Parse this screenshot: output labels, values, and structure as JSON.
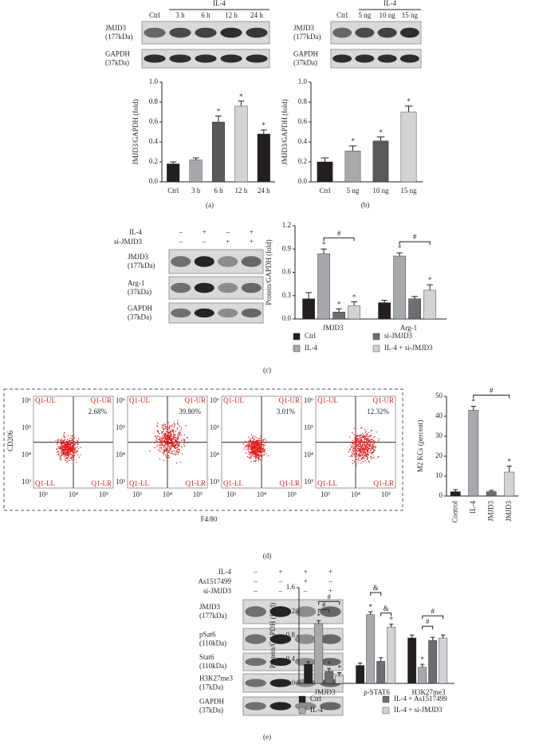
{
  "panel_labels": [
    "(a)",
    "(b)",
    "(c)",
    "(d)",
    "(e)"
  ],
  "blots": [
    {
      "group_label": "IL-4",
      "lanes": [
        "Ctrl",
        "3 h",
        "6 h",
        "12 h",
        "24 h"
      ],
      "rows": [
        [
          "JMJD3",
          "(177kDa)"
        ],
        [
          "GAPDH",
          "(37kDa)"
        ]
      ]
    },
    {
      "group_label": "IL-4",
      "lanes": [
        "Ctrl",
        "5 ng",
        "10 ng",
        "15 ng"
      ],
      "rows": [
        [
          "JMJD3",
          "(177kDa)"
        ],
        [
          "GAPDH",
          "(37kDa)"
        ]
      ]
    },
    {
      "conditions": [
        {
          "name": "IL-4",
          "signs": [
            "–",
            "+",
            "–",
            "+"
          ]
        },
        {
          "name": "si-JMJD3",
          "signs": [
            "–",
            "–",
            "+",
            "+"
          ]
        }
      ],
      "rows": [
        [
          "JMJD3",
          "(177kDa)"
        ],
        [
          "Arg-1",
          "(37kDa)"
        ],
        [
          "GAPDH",
          "(37kDa)"
        ]
      ]
    },
    {
      "conditions": [
        {
          "name": "IL-4",
          "signs": [
            "–",
            "+",
            "+",
            "+"
          ]
        },
        {
          "name": "As1517499",
          "signs": [
            "–",
            "–",
            "+",
            "–"
          ]
        },
        {
          "name": "si-JMJD3",
          "signs": [
            "–",
            "–",
            "–",
            "+"
          ]
        }
      ],
      "rows": [
        [
          "JMJD3",
          "(177kDa)"
        ],
        [
          "pSat6",
          "(110kDa)"
        ],
        [
          "Stat6",
          "(110kDa)"
        ],
        [
          "H3K27me3",
          "(17kDa)"
        ],
        [
          "GAPDH",
          "(37kDa)"
        ]
      ]
    }
  ],
  "flow": {
    "y_label": "CD206",
    "x_label": "F4/80",
    "quadrants": [
      "Q1-UL",
      "Q1-UR",
      "Q1-LL",
      "Q1-LR"
    ],
    "xticks": [
      "10³",
      "10⁴",
      "10⁵"
    ],
    "yticks": [
      "10⁶",
      "10⁵",
      "10⁴",
      "10³"
    ],
    "percentages": [
      "2.68%",
      "39.80%",
      "3.01%",
      "12.32%"
    ]
  },
  "chart_data": [
    {
      "type": "bar",
      "y_label": "JMJD3/GAPDH (fold)",
      "categories": [
        "Ctrl",
        "3 h",
        "6 h",
        "12 h",
        "24 h"
      ],
      "values": [
        0.18,
        0.22,
        0.6,
        0.76,
        0.48
      ],
      "errors": [
        0.02,
        0.02,
        0.06,
        0.05,
        0.04
      ],
      "annotations": [
        null,
        null,
        "*",
        "*",
        "*"
      ],
      "colors": [
        "#231f20",
        "#a7a9ac",
        "#58595b",
        "#d1d3d4",
        "#231f20"
      ],
      "ylim": [
        0,
        1.0
      ],
      "yticks": [
        {
          "value": 0,
          "label": "0.0"
        },
        {
          "value": 0.2,
          "label": "0.2"
        },
        {
          "value": 0.4,
          "label": "0.4"
        },
        {
          "value": 0.6,
          "label": "0.6"
        },
        {
          "value": 0.8,
          "label": "0.8"
        },
        {
          "value": 1.0,
          "label": "1.0"
        }
      ]
    },
    {
      "type": "bar",
      "y_label": "JMJD3/GAPDH (fold)",
      "categories": [
        "Ctrl",
        "5 ng",
        "10 ng",
        "15 ng"
      ],
      "values": [
        0.2,
        0.31,
        0.41,
        0.7
      ],
      "errors": [
        0.04,
        0.05,
        0.04,
        0.06
      ],
      "annotations": [
        null,
        "*",
        "*",
        "*"
      ],
      "colors": [
        "#231f20",
        "#a7a9ac",
        "#58595b",
        "#d1d3d4"
      ],
      "ylim": [
        0,
        1.0
      ],
      "yticks": [
        {
          "value": 0,
          "label": "0.0"
        },
        {
          "value": 0.2,
          "label": "0.2"
        },
        {
          "value": 0.4,
          "label": "0.4"
        },
        {
          "value": 0.6,
          "label": "0.6"
        },
        {
          "value": 0.8,
          "label": "0.8"
        },
        {
          "value": 1.0,
          "label": "1.0"
        }
      ]
    },
    {
      "type": "bar",
      "y_label": "Protein/GAPDH (fold)",
      "categories": [
        "JMJD3",
        "Arg-1"
      ],
      "series": [
        {
          "name": "Ctrl",
          "color": "#231f20",
          "values": [
            0.26,
            0.21
          ],
          "errors": [
            0.08,
            0.03
          ],
          "annotations": [
            null,
            null
          ]
        },
        {
          "name": "IL-4",
          "color": "#a7a9ac",
          "values": [
            0.84,
            0.81
          ],
          "errors": [
            0.06,
            0.04
          ],
          "annotations": [
            "*",
            "*"
          ]
        },
        {
          "name": "si-JMJD3",
          "color": "#6d6e71",
          "values": [
            0.09,
            0.26
          ],
          "errors": [
            0.04,
            0.03
          ],
          "annotations": [
            "*",
            null
          ]
        },
        {
          "name": "IL-4 + si-JMJD3",
          "color": "#d1d3d4",
          "values": [
            0.17,
            0.37
          ],
          "errors": [
            0.05,
            0.07
          ],
          "annotations": [
            "*",
            "*"
          ]
        }
      ],
      "comparisons": [
        {
          "label": "#",
          "category": 0,
          "between": [
            1,
            3
          ]
        },
        {
          "label": "#",
          "category": 1,
          "between": [
            1,
            3
          ]
        }
      ],
      "ylim": [
        0,
        1.2
      ],
      "yticks": [
        {
          "value": 0,
          "label": "0.0"
        },
        {
          "value": 0.3,
          "label": "0.3"
        },
        {
          "value": 0.6,
          "label": "0.6"
        },
        {
          "value": 0.9,
          "label": "0.9"
        },
        {
          "value": 1.2,
          "label": "1.2"
        }
      ]
    },
    {
      "type": "bar",
      "y_label": "M2 KCs (percent)",
      "categories": [
        "Control",
        "IL-4",
        "JMJD3",
        "JMJD3"
      ],
      "values": [
        2.2,
        43,
        2.2,
        12
      ],
      "errors": [
        1,
        2,
        0.6,
        3
      ],
      "annotations": [
        null,
        "*",
        null,
        "*"
      ],
      "colors": [
        "#231f20",
        "#a7a9ac",
        "#6d6e71",
        "#d1d3d4"
      ],
      "comparisons": [
        {
          "label": "#",
          "between": [
            1,
            3
          ]
        }
      ],
      "ylim": [
        0,
        50
      ],
      "yticks": [
        0,
        10,
        20,
        30,
        40,
        50
      ]
    },
    {
      "type": "bar",
      "y_label": "Protein/GAPDH (fold)",
      "categories": [
        "JMJD3",
        "p-STAT6",
        "H3K27me3"
      ],
      "series": [
        {
          "name": "Ctrl",
          "color": "#231f20",
          "values": [
            0.32,
            0.3,
            0.76
          ],
          "errors": [
            0.04,
            0.04,
            0.05
          ],
          "annotations": [
            null,
            null,
            null
          ]
        },
        {
          "name": "IL-4",
          "color": "#a7a9ac",
          "values": [
            1.0,
            1.15,
            0.27
          ],
          "errors": [
            0.05,
            0.05,
            0.05
          ],
          "annotations": [
            "*",
            "*",
            "*"
          ]
        },
        {
          "name": "IL-4 + As1517499",
          "color": "#6d6e71",
          "values": [
            0.2,
            0.37,
            0.72
          ],
          "errors": [
            0.05,
            0.06,
            0.05
          ],
          "annotations": [
            "*",
            null,
            null
          ]
        },
        {
          "name": "IL-4 + si-JMJD3",
          "color": "#d1d3d4",
          "values": [
            0.13,
            0.94,
            0.76
          ],
          "errors": [
            0.05,
            0.05,
            0.05
          ],
          "annotations": [
            "*",
            "*",
            null
          ]
        }
      ],
      "comparisons": [
        {
          "label": "#",
          "category": 0,
          "between": [
            1,
            2
          ]
        },
        {
          "label": "#",
          "category": 0,
          "between": [
            1,
            3
          ]
        },
        {
          "label": "&",
          "category": 1,
          "between": [
            2,
            3
          ]
        },
        {
          "label": "&",
          "category": 1,
          "between": [
            1,
            2
          ]
        },
        {
          "label": "#",
          "category": 2,
          "between": [
            1,
            2
          ]
        },
        {
          "label": "#",
          "category": 2,
          "between": [
            1,
            3
          ]
        }
      ],
      "ylim": [
        0,
        1.6
      ],
      "yticks": [
        {
          "value": 0,
          "label": "0.0"
        },
        {
          "value": 0.4,
          "label": "0.4"
        },
        {
          "value": 0.8,
          "label": "0.8"
        },
        {
          "value": 1.2,
          "label": "1.2"
        },
        {
          "value": 1.6,
          "label": "1.6"
        }
      ]
    }
  ]
}
